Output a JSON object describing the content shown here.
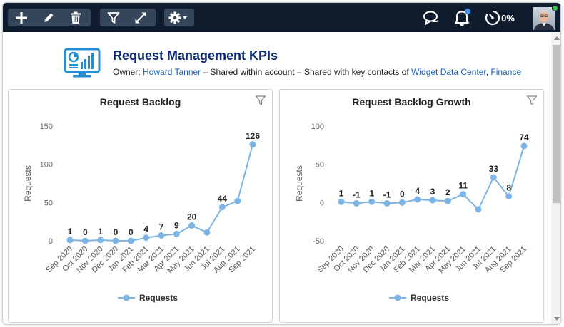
{
  "toolbar": {
    "edit_group": [
      {
        "name": "add-icon"
      },
      {
        "name": "pencil-icon"
      },
      {
        "name": "trash-icon"
      }
    ],
    "view_group": [
      {
        "name": "filter-icon"
      },
      {
        "name": "expand-icon"
      }
    ],
    "settings": {
      "name": "gear-icon"
    },
    "right": {
      "chat": "chat-icon",
      "notifications": "bell-icon",
      "progress_label": "0%"
    }
  },
  "colors": {
    "topbar": "#0f1c2e",
    "title": "#0d2a73",
    "link": "#1f5fb4",
    "series": "#7db4e6",
    "presence": "#37c24b",
    "notification": "#3b8df0"
  },
  "header": {
    "title": "Request Management KPIs",
    "owner_prefix": "Owner: ",
    "owner": "Howard Tanner",
    "shared_text": " – Shared within account – Shared with key contacts of ",
    "company": "Widget Data Center",
    "separator": ", ",
    "department": "Finance"
  },
  "chart_data": [
    {
      "type": "line",
      "title": "Request Backlog",
      "ylabel": "Requests",
      "xlabel": "",
      "ylim": [
        0,
        150
      ],
      "yticks": [
        0,
        50,
        100,
        150
      ],
      "categories": [
        "Sep 2020",
        "Oct 2020",
        "Nov 2020",
        "Dec 2020",
        "Jan 2021",
        "Feb 2021",
        "Mar 2021",
        "Apr 2021",
        "May 2021",
        "Jun 2021",
        "Jul 2021",
        "Aug 2021",
        "Sep 2021"
      ],
      "series": [
        {
          "name": "Requests",
          "values": [
            1,
            0,
            1,
            0,
            0,
            4,
            7,
            9,
            20,
            11,
            44,
            52,
            126
          ]
        }
      ],
      "data_labels": [
        "1",
        "0",
        "1",
        "0",
        "0",
        "4",
        "7",
        "9",
        "20",
        "",
        "44",
        "",
        "126"
      ],
      "legend": "bottom"
    },
    {
      "type": "line",
      "title": "Request Backlog Growth",
      "ylabel": "Requests",
      "xlabel": "",
      "ylim": [
        -50,
        100
      ],
      "yticks": [
        -50,
        0,
        50,
        100
      ],
      "categories": [
        "Sep 2020",
        "Oct 2020",
        "Nov 2020",
        "Dec 2020",
        "Jan 2021",
        "Feb 2021",
        "Mar 2021",
        "Apr 2021",
        "May 2021",
        "Jun 2021",
        "Jul 2021",
        "Aug 2021",
        "Sep 2021"
      ],
      "series": [
        {
          "name": "Requests",
          "values": [
            1,
            -1,
            1,
            -1,
            0,
            4,
            3,
            2,
            11,
            -9,
            33,
            8,
            74
          ]
        }
      ],
      "data_labels": [
        "1",
        "-1",
        "1",
        "-1",
        "0",
        "4",
        "3",
        "2",
        "11",
        "",
        "33",
        "8",
        "74"
      ],
      "legend": "bottom"
    }
  ]
}
